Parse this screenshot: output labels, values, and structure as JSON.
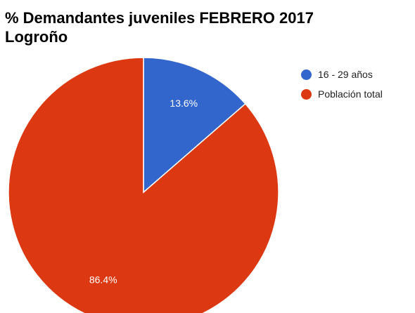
{
  "chart_data": {
    "type": "pie",
    "title_lines": [
      "% Demandantes juveniles FEBRERO 2017",
      "Logroño"
    ],
    "slices": [
      {
        "label": "16 - 29 años",
        "value": 13.6,
        "value_label": "13.6%",
        "color": "#3366cc"
      },
      {
        "label": "Población total",
        "value": 86.4,
        "value_label": "86.4%",
        "color": "#dc3912"
      }
    ],
    "start_angle_deg": 0,
    "direction": "clockwise",
    "legend_position": "right"
  }
}
